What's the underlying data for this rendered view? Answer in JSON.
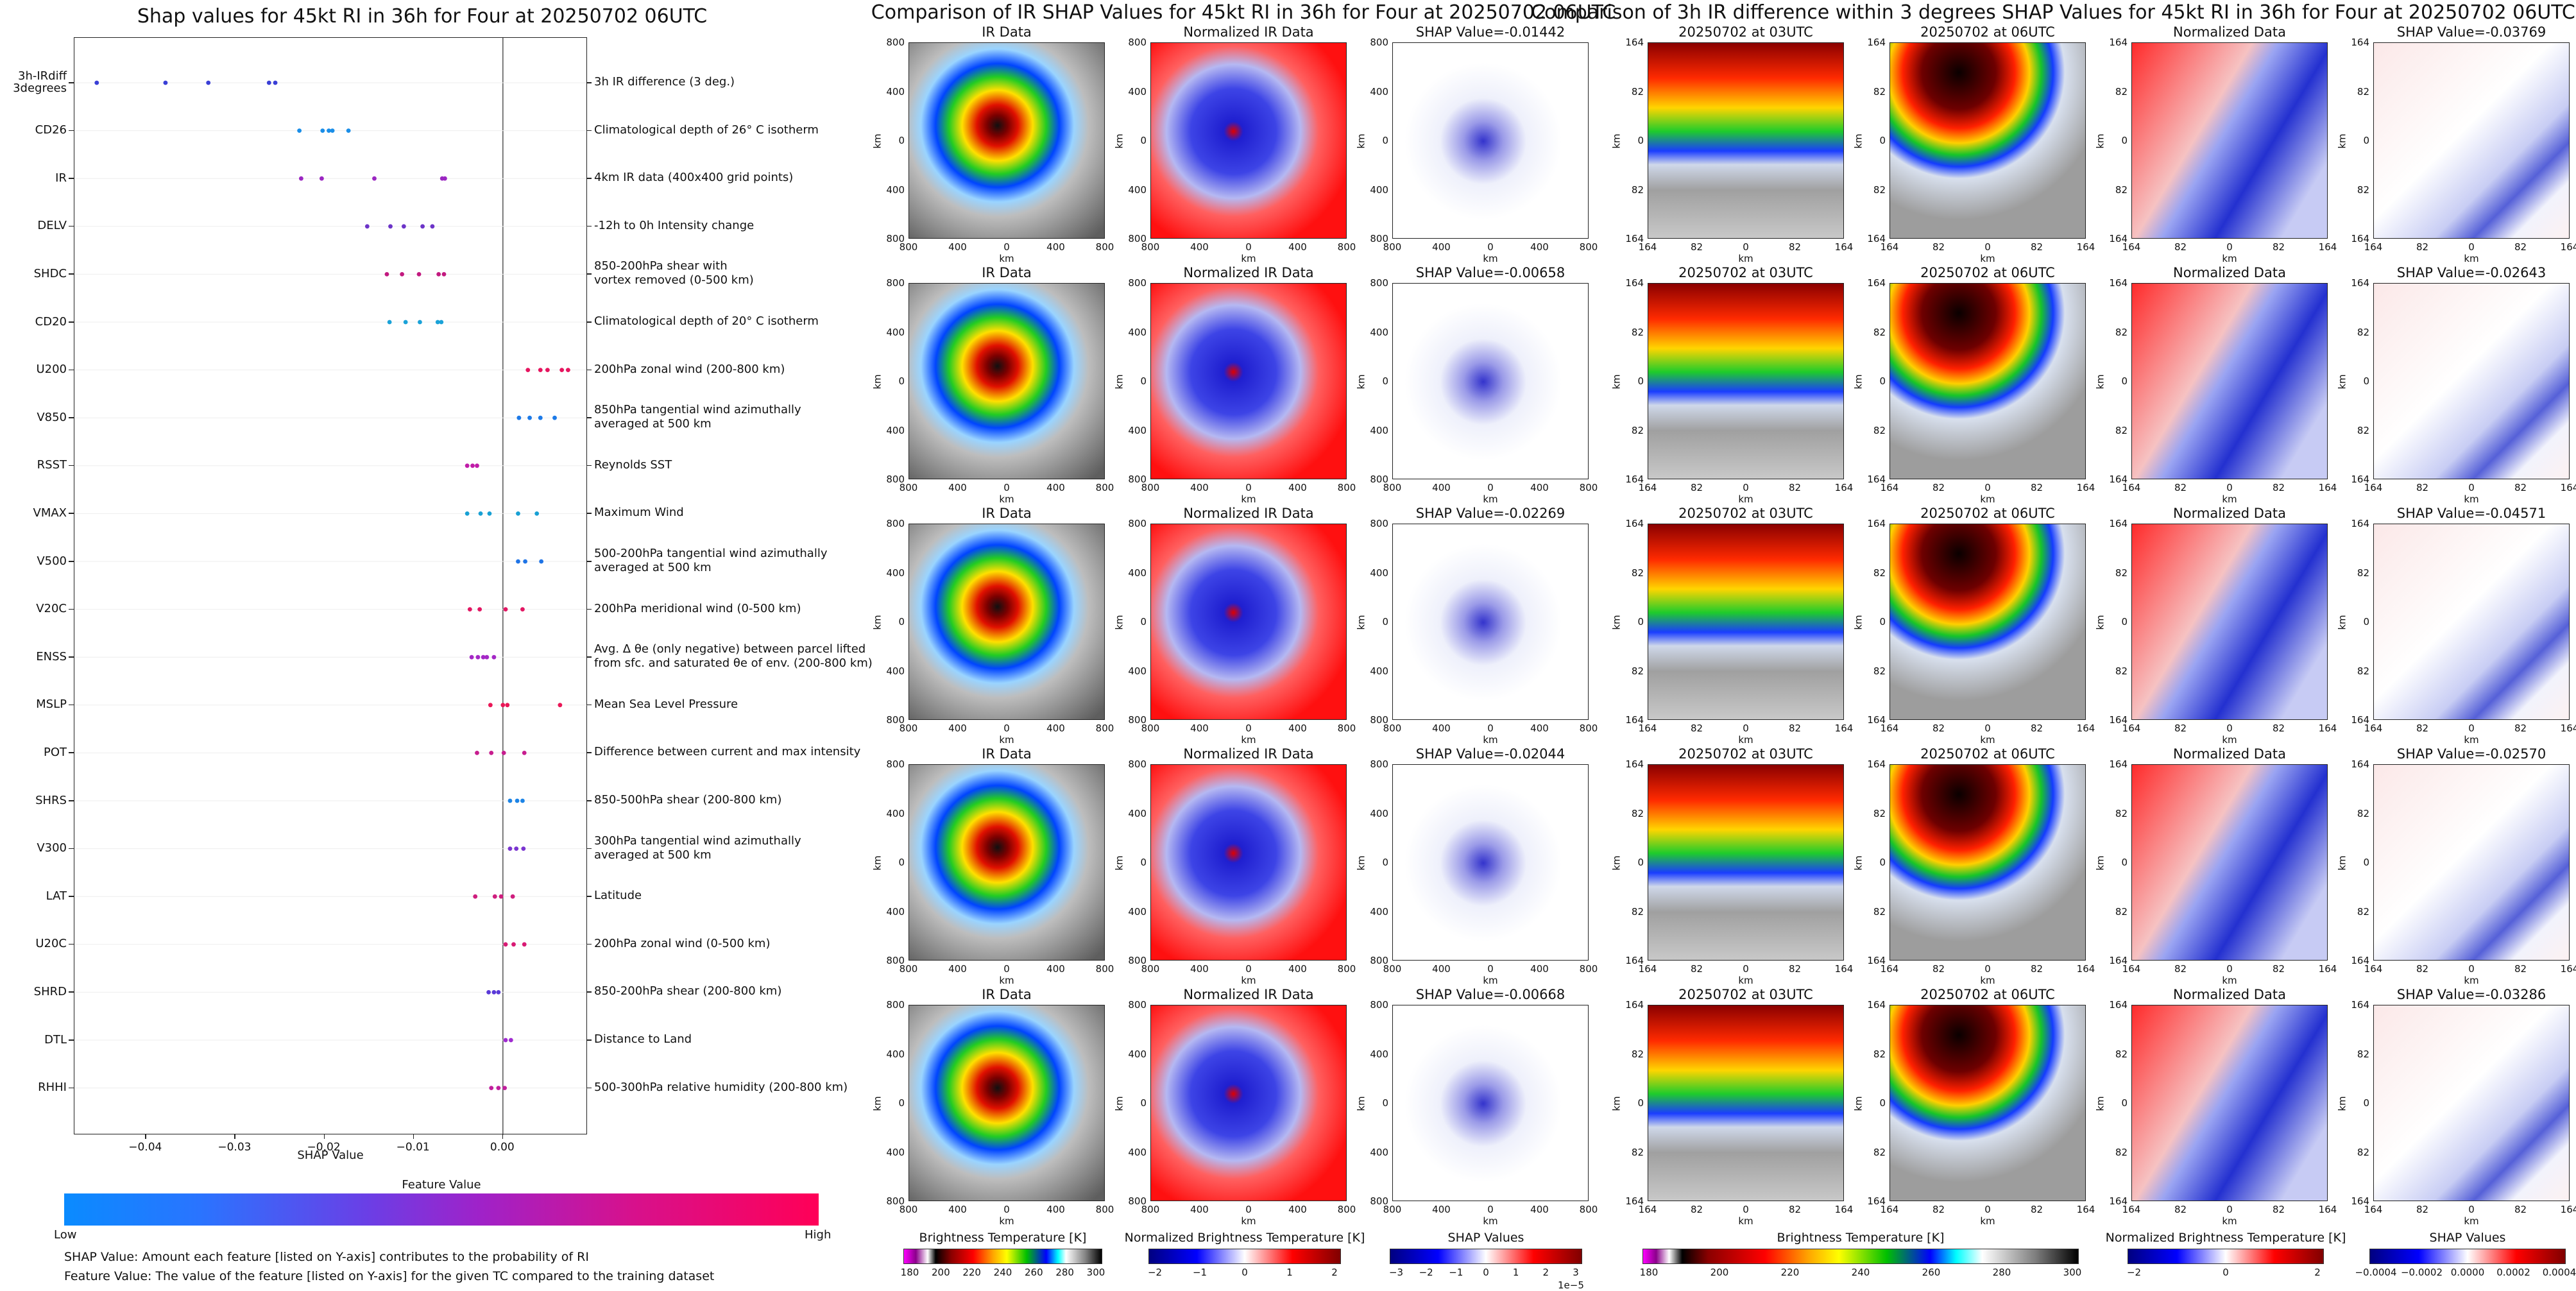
{
  "left_panel": {
    "title": "Shap values for 45kt RI in 36h for Four at 20250702 06UTC",
    "xlabel": "SHAP Value",
    "colorbar_title": "Feature Value",
    "colorbar_low": "Low",
    "colorbar_high": "High",
    "notes": [
      "SHAP Value: Amount each feature [listed on Y-axis] contributes to the probability of RI",
      "Feature Value: The value of the feature [listed on Y-axis] for the given TC compared to the training dataset"
    ]
  },
  "middle_panel": {
    "title": "Comparison of IR SHAP Values for 45kt RI in 36h for Four at 20250702 06UTC",
    "col_titles": [
      "IR Data",
      "Normalized IR Data"
    ],
    "shap_titles": [
      "SHAP Value=-0.01442",
      "SHAP Value=-0.00658",
      "SHAP Value=-0.02269",
      "SHAP Value=-0.02044",
      "SHAP Value=-0.00668"
    ],
    "y_ticks": [
      "800",
      "400",
      "0",
      "400",
      "800"
    ],
    "x_ticks": [
      "800",
      "400",
      "0",
      "400",
      "800"
    ],
    "axis_label": "km",
    "cbar_labels": [
      "Brightness Temperature [K]",
      "Normalized Brightness Temperature [K]",
      "SHAP Values"
    ],
    "cbar1_ticks": [
      "180",
      "200",
      "220",
      "240",
      "260",
      "280",
      "300"
    ],
    "cbar2_ticks": [
      "−2",
      "−1",
      "0",
      "1",
      "2"
    ],
    "cbar3_ticks": [
      "−3",
      "−2",
      "−1",
      "0",
      "1",
      "2",
      "3"
    ],
    "cbar3_exponent": "1e−5"
  },
  "right_panel": {
    "title": "Comparison of 3h IR difference within 3 degrees SHAP Values for 45kt RI in 36h for Four at 20250702 06UTC",
    "col_titles": [
      "20250702 at 03UTC",
      "20250702 at 06UTC",
      "Normalized Data"
    ],
    "shap_titles": [
      "SHAP Value=-0.03769",
      "SHAP Value=-0.02643",
      "SHAP Value=-0.04571",
      "SHAP Value=-0.02570",
      "SHAP Value=-0.03286"
    ],
    "y_ticks": [
      "164",
      "82",
      "0",
      "82",
      "164"
    ],
    "x_ticks": [
      "164",
      "82",
      "0",
      "82",
      "164"
    ],
    "axis_label": "km",
    "cbar_labels": [
      "Brightness Temperature [K]",
      "Normalized Brightness Temperature [K]",
      "SHAP Values"
    ],
    "cbar1_ticks": [
      "180",
      "200",
      "220",
      "240",
      "260",
      "280",
      "300"
    ],
    "cbar2_ticks": [
      "−2",
      "0",
      "2"
    ],
    "cbar3_ticks": [
      "−0.0004",
      "−0.0002",
      "0.0000",
      "0.0002",
      "0.0004"
    ]
  },
  "chart_data": {
    "type": "scatter",
    "title": "Shap values for 45kt RI in 36h for Four at 20250702 06UTC",
    "xlabel": "SHAP Value",
    "xlim": [
      -0.048,
      0.0095
    ],
    "xticks": [
      "−0.04",
      "−0.03",
      "−0.02",
      "−0.01",
      "0.00"
    ],
    "xtick_values": [
      -0.04,
      -0.03,
      -0.02,
      -0.01,
      0.0
    ],
    "features": [
      {
        "name": "3h-IRdiff\n3degrees",
        "desc": "3h IR difference (3 deg.)",
        "points": [
          -0.0455,
          -0.0378,
          -0.033,
          -0.0262,
          -0.0255
        ],
        "color": "#3a3fd6"
      },
      {
        "name": "CD26",
        "desc": "Climatological depth of 26° C isotherm",
        "points": [
          -0.0228,
          -0.0202,
          -0.0195,
          -0.0191,
          -0.0173
        ],
        "color": "#1a8ee8"
      },
      {
        "name": "IR",
        "desc": "4km IR data (400x400 grid points)",
        "points": [
          -0.0226,
          -0.0203,
          -0.0144,
          -0.0068,
          -0.0065
        ],
        "color": "#9b27c2"
      },
      {
        "name": "DELV",
        "desc": "-12h to 0h Intensity change",
        "points": [
          -0.0152,
          -0.0126,
          -0.0111,
          -0.009,
          -0.0079
        ],
        "color": "#6c34c8"
      },
      {
        "name": "SHDC",
        "desc": "850-200hPa shear with\nvortex removed (0-500 km)",
        "points": [
          -0.013,
          -0.0113,
          -0.0094,
          -0.0072,
          -0.0066
        ],
        "color": "#c2197f"
      },
      {
        "name": "CD20",
        "desc": "Climatological depth of 20° C isotherm",
        "points": [
          -0.0127,
          -0.0109,
          -0.0093,
          -0.0073,
          -0.0069
        ],
        "color": "#1aa2d8"
      },
      {
        "name": "U200",
        "desc": "200hPa zonal wind (200-800 km)",
        "points": [
          0.0028,
          0.0042,
          0.005,
          0.0066,
          0.0073
        ],
        "color": "#e6155f"
      },
      {
        "name": "V850",
        "desc": "850hPa tangential wind azimuthally\naveraged at 500 km",
        "points": [
          0.0018,
          0.003,
          0.0042,
          0.0058
        ],
        "color": "#1d7ae8"
      },
      {
        "name": "RSST",
        "desc": "Reynolds SST",
        "points": [
          -0.004,
          -0.0034,
          -0.0029
        ],
        "color": "#c01ca8"
      },
      {
        "name": "VMAX",
        "desc": "Maximum Wind",
        "points": [
          -0.004,
          -0.0025,
          -0.0015,
          0.0017,
          0.0038
        ],
        "color": "#17a0d4"
      },
      {
        "name": "V500",
        "desc": "500-200hPa tangential wind azimuthally\naveraged at 500 km",
        "points": [
          0.0017,
          0.0025,
          0.0043
        ],
        "color": "#1f74e6"
      },
      {
        "name": "V20C",
        "desc": "200hPa meridional wind (0-500 km)",
        "points": [
          -0.0037,
          -0.0026,
          0.0003,
          0.0022
        ],
        "color": "#e21763"
      },
      {
        "name": "ENSS",
        "desc": "Avg. Δ θe (only negative) between parcel lifted\nfrom sfc. and saturated θe of env. (200-800 km)",
        "points": [
          -0.0035,
          -0.0028,
          -0.0022,
          -0.0018,
          -0.001
        ],
        "color": "#a428c6"
      },
      {
        "name": "MSLP",
        "desc": "Mean Sea Level Pressure",
        "points": [
          -0.0014,
          0.0,
          0.0005,
          0.0064
        ],
        "color": "#ea1757"
      },
      {
        "name": "POT",
        "desc": "Difference between current and max intensity",
        "points": [
          -0.0029,
          -0.0013,
          0.0001,
          0.0024
        ],
        "color": "#c71d8f"
      },
      {
        "name": "SHRS",
        "desc": "850-500hPa shear (200-800 km)",
        "points": [
          0.0008,
          0.0016,
          0.0022
        ],
        "color": "#1c84e6"
      },
      {
        "name": "V300",
        "desc": "300hPa tangential wind azimuthally\naveraged at 500 km",
        "points": [
          0.0008,
          0.0015,
          0.0023
        ],
        "color": "#7a34d0"
      },
      {
        "name": "LAT",
        "desc": "Latitude",
        "points": [
          -0.0031,
          -0.0009,
          -0.0002,
          0.0011
        ],
        "color": "#cf1e7e"
      },
      {
        "name": "U20C",
        "desc": "200hPa zonal wind (0-500 km)",
        "points": [
          0.0003,
          0.0012,
          0.0024
        ],
        "color": "#d81a74"
      },
      {
        "name": "SHRD",
        "desc": "850-200hPa shear (200-800 km)",
        "points": [
          -0.0016,
          -0.001,
          -0.0005
        ],
        "color": "#5a3ad8"
      },
      {
        "name": "DTL",
        "desc": "Distance to Land",
        "points": [
          0.0003,
          0.0009
        ],
        "color": "#9f2bd0"
      },
      {
        "name": "RHHI",
        "desc": "500-300hPa relative humidity (200-800 km)",
        "points": [
          -0.0013,
          -0.0005,
          0.0002
        ],
        "color": "#c11f9d"
      }
    ]
  }
}
